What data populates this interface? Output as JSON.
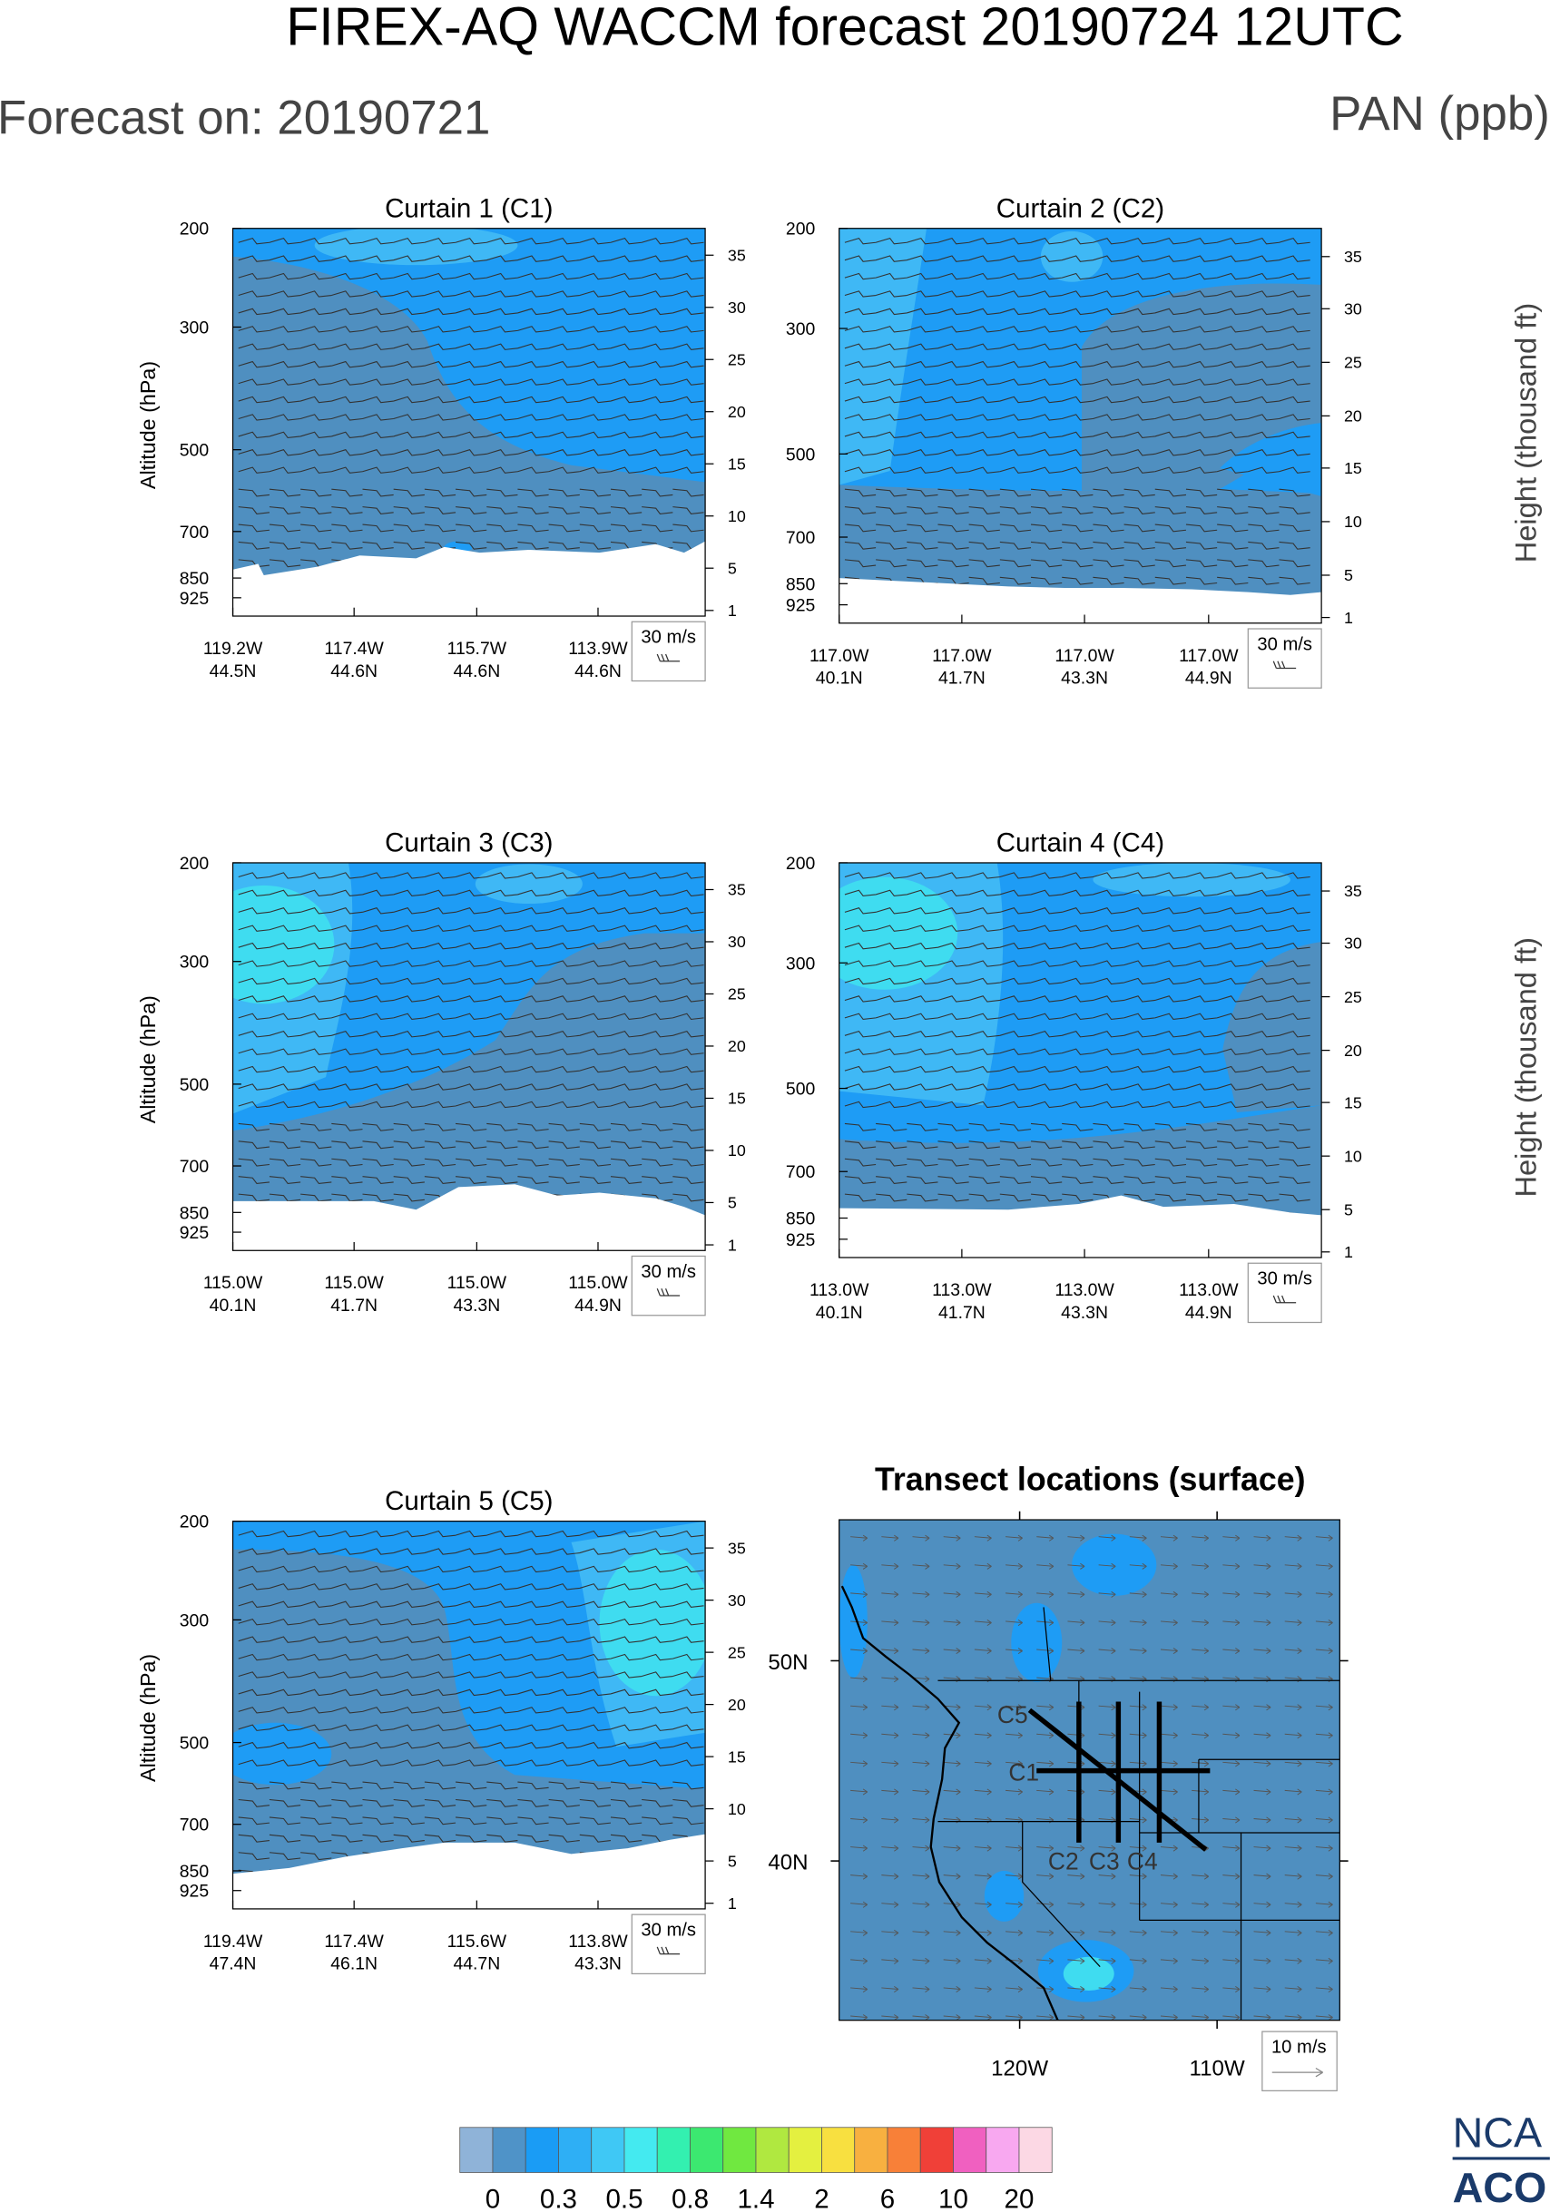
{
  "header": {
    "title": "FIREX-AQ WACCM forecast 20190724 12UTC",
    "forecast_on": "Forecast on: 20190721",
    "variable": "PAN (ppb)"
  },
  "panels": [
    {
      "title": "Curtain 1 (C1)",
      "y_label": "Altitude (hPa)",
      "pressure_ticks": [
        "200",
        "300",
        "500",
        "700",
        "850",
        "925"
      ],
      "height_ticks": [
        "35",
        "30",
        "25",
        "20",
        "15",
        "10",
        "5",
        "1"
      ],
      "x_ticks": [
        [
          "119.2W",
          "44.5N"
        ],
        [
          "117.4W",
          "44.6N"
        ],
        [
          "115.7W",
          "44.6N"
        ],
        [
          "113.9W",
          "44.6N"
        ]
      ],
      "ref_vector": "30 m/s"
    },
    {
      "title": "Curtain 2 (C2)",
      "pressure_ticks": [
        "200",
        "300",
        "500",
        "700",
        "850",
        "925"
      ],
      "height_ticks": [
        "35",
        "30",
        "25",
        "20",
        "15",
        "10",
        "5",
        "1"
      ],
      "height_label": "Height (thousand ft)",
      "x_ticks": [
        [
          "117.0W",
          "40.1N"
        ],
        [
          "117.0W",
          "41.7N"
        ],
        [
          "117.0W",
          "43.3N"
        ],
        [
          "117.0W",
          "44.9N"
        ]
      ],
      "ref_vector": "30 m/s"
    },
    {
      "title": "Curtain 3 (C3)",
      "y_label": "Altitude (hPa)",
      "pressure_ticks": [
        "200",
        "300",
        "500",
        "700",
        "850",
        "925"
      ],
      "height_ticks": [
        "35",
        "30",
        "25",
        "20",
        "15",
        "10",
        "5",
        "1"
      ],
      "x_ticks": [
        [
          "115.0W",
          "40.1N"
        ],
        [
          "115.0W",
          "41.7N"
        ],
        [
          "115.0W",
          "43.3N"
        ],
        [
          "115.0W",
          "44.9N"
        ]
      ],
      "ref_vector": "30 m/s"
    },
    {
      "title": "Curtain 4 (C4)",
      "pressure_ticks": [
        "200",
        "300",
        "500",
        "700",
        "850",
        "925"
      ],
      "height_ticks": [
        "35",
        "30",
        "25",
        "20",
        "15",
        "10",
        "5",
        "1"
      ],
      "height_label": "Height (thousand ft)",
      "x_ticks": [
        [
          "113.0W",
          "40.1N"
        ],
        [
          "113.0W",
          "41.7N"
        ],
        [
          "113.0W",
          "43.3N"
        ],
        [
          "113.0W",
          "44.9N"
        ]
      ],
      "ref_vector": "30 m/s"
    },
    {
      "title": "Curtain 5 (C5)",
      "y_label": "Altitude (hPa)",
      "pressure_ticks": [
        "200",
        "300",
        "500",
        "700",
        "850",
        "925"
      ],
      "height_ticks": [
        "35",
        "30",
        "25",
        "20",
        "15",
        "10",
        "5",
        "1"
      ],
      "x_ticks": [
        [
          "119.4W",
          "47.4N"
        ],
        [
          "117.4W",
          "46.1N"
        ],
        [
          "115.6W",
          "44.7N"
        ],
        [
          "113.8W",
          "43.3N"
        ]
      ],
      "ref_vector": "30 m/s"
    }
  ],
  "map": {
    "title": "Transect locations (surface)",
    "lat_labels": [
      "50N",
      "40N"
    ],
    "lon_labels": [
      "120W",
      "110W"
    ],
    "transects": [
      "C5",
      "C1",
      "C2",
      "C3",
      "C4"
    ],
    "ref_vector": "10 m/s"
  },
  "colorbar": {
    "labels": [
      "0",
      "0.3",
      "0.5",
      "0.8",
      "1.4",
      "2",
      "6",
      "10",
      "20"
    ],
    "colors": [
      "#8fb3d8",
      "#4f93c8",
      "#1a9cf5",
      "#2eaff5",
      "#3fc8f5",
      "#44eaf0",
      "#33f0b0",
      "#3ce870",
      "#70e840",
      "#b0e840",
      "#e4f040",
      "#f8e040",
      "#f8b040",
      "#f88038",
      "#f04038",
      "#f060c0",
      "#f8a8f0",
      "#fcd8e4"
    ]
  },
  "logo": [
    "NCA",
    "ACO"
  ]
}
